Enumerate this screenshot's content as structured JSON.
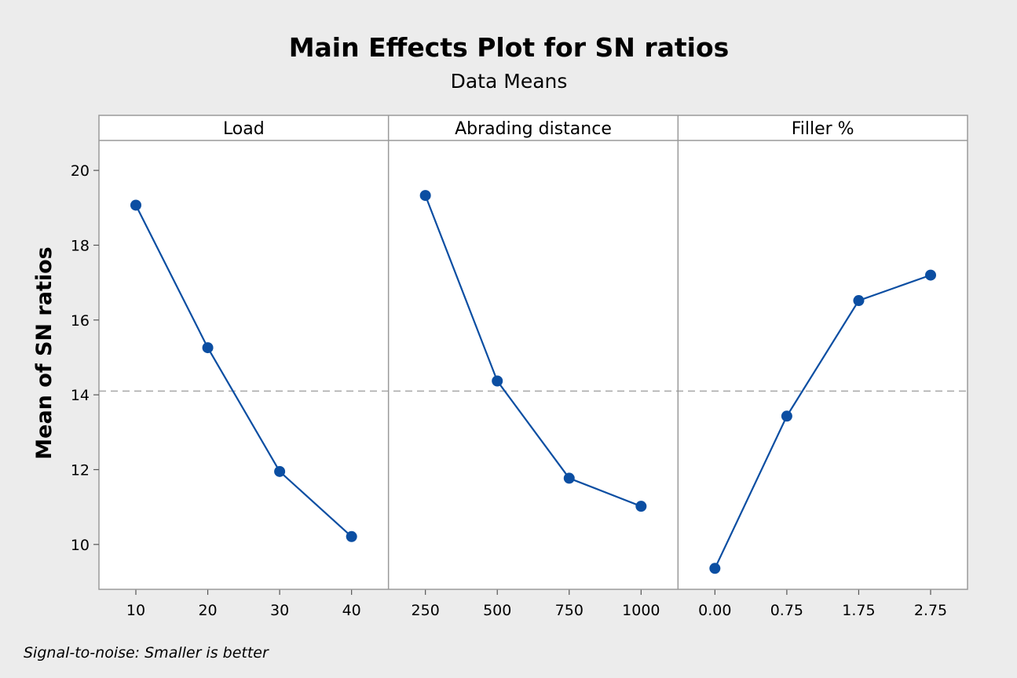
{
  "chart_data": {
    "type": "line",
    "title": "Main Effects Plot for SN ratios",
    "subtitle": "Data Means",
    "ylabel": "Mean of SN ratios",
    "ylim": [
      8.8,
      20.8
    ],
    "yticks": [
      10,
      12,
      14,
      16,
      18,
      20
    ],
    "ytick_labels": [
      "10",
      "12",
      "14",
      "16",
      "18",
      "20"
    ],
    "reference_line": 14.1,
    "footnote": "Signal-to-noise: Smaller is better",
    "colors": {
      "series": "#0b4ea2",
      "reference": "#a8a8a8",
      "panel_bg": "#ffffff",
      "border": "#9a9a9a",
      "page_bg": "#ececec"
    },
    "panels": [
      {
        "name": "Load",
        "categories": [
          "10",
          "20",
          "30",
          "40"
        ],
        "values": [
          19.07,
          15.26,
          11.95,
          10.21
        ]
      },
      {
        "name": "Abrading distance",
        "categories": [
          "250",
          "500",
          "750",
          "1000"
        ],
        "values": [
          19.33,
          14.37,
          11.77,
          11.02
        ]
      },
      {
        "name": "Filler %",
        "categories": [
          "0.00",
          "0.75",
          "1.75",
          "2.75"
        ],
        "values": [
          9.36,
          13.43,
          16.52,
          17.2
        ]
      }
    ]
  }
}
